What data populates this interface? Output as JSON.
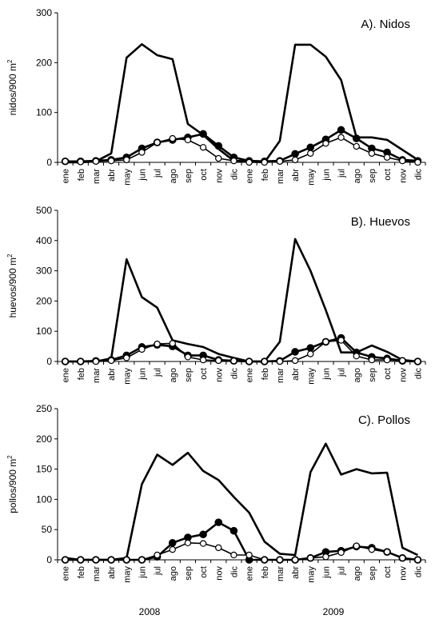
{
  "chart_data": [
    {
      "type": "line",
      "title": "A). Nidos",
      "ylabel": "nidos/900 m",
      "ylabel_sup": "2",
      "ylim": [
        0,
        300
      ],
      "yticks": [
        0,
        100,
        200,
        300
      ],
      "categories": [
        "ene",
        "feb",
        "mar",
        "abr",
        "may",
        "jun",
        "jul",
        "ago",
        "sep",
        "oct",
        "nov",
        "dic",
        "ene",
        "feb",
        "mar",
        "abr",
        "may",
        "jun",
        "jul",
        "ago",
        "sep",
        "oct",
        "nov",
        "dic"
      ],
      "series": [
        {
          "style": "line",
          "values": [
            0,
            0,
            2,
            18,
            210,
            237,
            215,
            207,
            77,
            55,
            27,
            3,
            2,
            0,
            43,
            236,
            236,
            212,
            165,
            50,
            50,
            45,
            25,
            5
          ]
        },
        {
          "style": "filled",
          "values": [
            2,
            2,
            3,
            5,
            10,
            28,
            40,
            45,
            50,
            57,
            33,
            10,
            3,
            2,
            3,
            17,
            30,
            46,
            65,
            48,
            28,
            20,
            5,
            3
          ]
        },
        {
          "style": "open",
          "values": [
            2,
            1,
            2,
            3,
            5,
            20,
            40,
            48,
            45,
            30,
            8,
            3,
            0,
            0,
            2,
            5,
            18,
            38,
            50,
            32,
            18,
            10,
            3,
            0
          ]
        }
      ]
    },
    {
      "type": "line",
      "title": "B). Huevos",
      "ylabel": "huevos/900  m",
      "ylabel_sup": "2",
      "ylim": [
        0,
        500
      ],
      "yticks": [
        0,
        100,
        200,
        300,
        400,
        500
      ],
      "categories": [
        "ene",
        "feb",
        "mar",
        "abr",
        "may",
        "jun",
        "jul",
        "ago",
        "sep",
        "oct",
        "nov",
        "dic",
        "ene",
        "feb",
        "mar",
        "abr",
        "may",
        "jun",
        "jul",
        "ago",
        "sep",
        "oct",
        "nov",
        "dic"
      ],
      "series": [
        {
          "style": "line",
          "values": [
            0,
            0,
            0,
            10,
            338,
            213,
            178,
            70,
            58,
            48,
            25,
            12,
            0,
            0,
            65,
            405,
            300,
            170,
            30,
            30,
            53,
            32,
            5,
            0
          ]
        },
        {
          "style": "filled",
          "values": [
            0,
            0,
            2,
            5,
            20,
            48,
            55,
            50,
            20,
            20,
            5,
            2,
            0,
            0,
            2,
            32,
            45,
            65,
            78,
            30,
            15,
            10,
            2,
            0
          ]
        },
        {
          "style": "open",
          "values": [
            0,
            0,
            0,
            3,
            12,
            40,
            58,
            60,
            15,
            5,
            3,
            2,
            0,
            0,
            0,
            3,
            25,
            65,
            70,
            18,
            5,
            5,
            3,
            0
          ]
        }
      ]
    },
    {
      "type": "line",
      "title": "C). Pollos",
      "ylabel": "pollos/900 m",
      "ylabel_sup": "2",
      "ylim": [
        0,
        250
      ],
      "yticks": [
        0,
        50,
        100,
        150,
        200,
        250
      ],
      "categories": [
        "ene",
        "feb",
        "mar",
        "abr",
        "may",
        "jun",
        "jul",
        "ago",
        "sep",
        "oct",
        "nov",
        "dic",
        "ene",
        "feb",
        "mar",
        "abr",
        "may",
        "jun",
        "jul",
        "ago",
        "sep",
        "oct",
        "nov",
        "dic"
      ],
      "series": [
        {
          "style": "line",
          "values": [
            3,
            0,
            0,
            0,
            3,
            125,
            174,
            157,
            177,
            147,
            132,
            104,
            78,
            30,
            10,
            8,
            145,
            192,
            141,
            150,
            143,
            144,
            20,
            8
          ]
        },
        {
          "style": "filled",
          "values": [
            0,
            0,
            0,
            0,
            0,
            0,
            5,
            28,
            37,
            42,
            62,
            48,
            0,
            0,
            0,
            0,
            3,
            13,
            15,
            22,
            20,
            13,
            3,
            0
          ]
        },
        {
          "style": "open",
          "values": [
            0,
            0,
            0,
            0,
            0,
            0,
            8,
            17,
            28,
            27,
            20,
            8,
            8,
            0,
            0,
            0,
            3,
            5,
            12,
            23,
            17,
            13,
            3,
            0
          ]
        }
      ]
    }
  ],
  "year_labels": [
    "2008",
    "2009"
  ]
}
